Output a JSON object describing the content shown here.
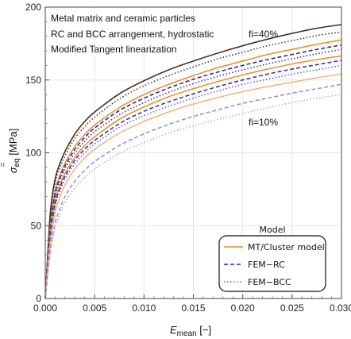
{
  "chart_data": {
    "type": "line",
    "title": "",
    "annotations": [
      "Metal matrix and ceramic particles",
      "RC and BCC arrangement, hydrostatic",
      "Modified Tangent linearization"
    ],
    "fraction_labels": {
      "upper": "fi=40%",
      "lower": "fi=10%"
    },
    "xlabel": {
      "symbol": "E",
      "subscript": "mean",
      "unit": " [−]"
    },
    "ylabel": {
      "symbol": "σ",
      "subscript": "eq",
      "unit": " [MPa]"
    },
    "xlim": [
      0,
      0.03
    ],
    "ylim": [
      0,
      200
    ],
    "xticks": [
      "0.000",
      "0.005",
      "0.010",
      "0.015",
      "0.020",
      "0.025",
      "0.030"
    ],
    "yticks": [
      "0",
      "50",
      "100",
      "150",
      "200"
    ],
    "grid": true,
    "legend": {
      "title": "Model",
      "placement": "bottom-right",
      "entries": [
        {
          "label": "MT/Cluster model",
          "style": "solid",
          "color": "#f08a24"
        },
        {
          "label": "FEM−RC",
          "style": "dashed",
          "color": "#2323b4"
        },
        {
          "label": "FEM−BCC",
          "style": "dotted",
          "color": "#6a6ad8"
        }
      ]
    },
    "x": [
      0,
      0.0005,
      0.001,
      0.0015,
      0.002,
      0.003,
      0.004,
      0.005,
      0.0075,
      0.01,
      0.0125,
      0.015,
      0.0175,
      0.02,
      0.0225,
      0.025,
      0.0275,
      0.03
    ],
    "series": [
      {
        "model": "MT/Cluster model",
        "fi": 0.4,
        "color": "#3a2410",
        "dash": "solid",
        "values": [
          0,
          58,
          82,
          93,
          101,
          113,
          121.5,
          128,
          140.5,
          149.5,
          157,
          163,
          168.5,
          173.5,
          178,
          182,
          185.5,
          188
        ]
      },
      {
        "model": "FEM-BCC",
        "fi": 0.4,
        "color": "#333333",
        "dash": "dotted",
        "values": [
          0,
          55,
          79,
          90,
          98,
          110,
          118,
          124.5,
          137,
          146,
          153,
          159,
          164.5,
          169,
          173.5,
          177,
          180.5,
          183
        ]
      },
      {
        "model": "MT/Cluster model",
        "fi": 0.3,
        "color": "#f08a24",
        "dash": "solid",
        "values": [
          0,
          50,
          74,
          85,
          93,
          104.5,
          112.5,
          119,
          131,
          140,
          147,
          153,
          158.5,
          163,
          167.5,
          171,
          174.5,
          177.5
        ]
      },
      {
        "model": "FEM-RC",
        "fi": 0.3,
        "color": "#1e1e9c",
        "dash": "dashed",
        "values": [
          0,
          48,
          72,
          83,
          91,
          102.5,
          110.5,
          117,
          129,
          137.5,
          144.5,
          150.5,
          155.5,
          160,
          164,
          167.5,
          171,
          174
        ]
      },
      {
        "model": "FEM-BCC",
        "fi": 0.3,
        "color": "#33338a",
        "dash": "dotted",
        "values": [
          0,
          47,
          70,
          81,
          89,
          100,
          108,
          114.5,
          126,
          134.5,
          141.5,
          147.5,
          152.5,
          157,
          161,
          164.5,
          168,
          171
        ]
      },
      {
        "model": "MT/Cluster model",
        "fi": 0.2,
        "color": "#f08a24",
        "dash": "solid",
        "values": [
          0,
          44,
          67,
          78,
          86,
          97,
          105,
          111,
          123,
          131.5,
          138.5,
          144,
          149,
          153.5,
          157.5,
          161,
          164,
          166.5
        ]
      },
      {
        "model": "FEM-RC",
        "fi": 0.2,
        "color": "#2a2ab8",
        "dash": "dashed",
        "values": [
          0,
          42,
          65,
          76,
          84,
          95,
          102.5,
          108.5,
          120,
          128.5,
          135,
          140.5,
          145.5,
          150,
          154,
          157.5,
          160.5,
          163.5
        ]
      },
      {
        "model": "FEM-BCC",
        "fi": 0.2,
        "color": "#5a5ad0",
        "dash": "dotted",
        "values": [
          0,
          40,
          63,
          74,
          82,
          92.5,
          100,
          106,
          117.5,
          125.5,
          132,
          137.5,
          142.5,
          147,
          150.5,
          154,
          157,
          160
        ]
      },
      {
        "model": "MT/Cluster model",
        "fi": 0.1,
        "color": "#f6b27a",
        "dash": "solid",
        "values": [
          0,
          37,
          59,
          70,
          78,
          89,
          96.5,
          102.5,
          113.5,
          121.5,
          128,
          133.5,
          138,
          142,
          145.5,
          148.5,
          151.5,
          154
        ]
      },
      {
        "model": "FEM-RC",
        "fi": 0.1,
        "color": "#8c8ce4",
        "dash": "dashed",
        "values": [
          0,
          33,
          52,
          62,
          70,
          80.5,
          88,
          94,
          105,
          113,
          119.5,
          125,
          129.5,
          134,
          137.5,
          141,
          144,
          147
        ]
      },
      {
        "model": "FEM-BCC",
        "fi": 0.1,
        "color": "#a8a8ec",
        "dash": "dotted",
        "values": [
          0,
          30,
          48,
          58,
          66,
          76,
          83,
          89,
          99.5,
          107,
          113.5,
          118.5,
          123,
          127,
          131,
          134.5,
          137.5,
          140
        ]
      }
    ]
  }
}
